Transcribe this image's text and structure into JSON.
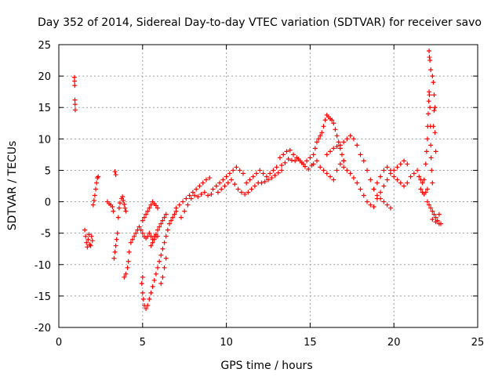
{
  "chart_data": {
    "type": "scatter",
    "title": "Day 352 of 2014, Sidereal Day-to-day VTEC variation (SDTVAR) for receiver savo",
    "xlabel": "GPS time / hours",
    "ylabel": "SDTVAR / TECUs",
    "xlim": [
      0,
      25
    ],
    "ylim": [
      -20,
      25
    ],
    "xticks": [
      0,
      5,
      10,
      15,
      20,
      25
    ],
    "yticks": [
      -20,
      -15,
      -10,
      -5,
      0,
      5,
      10,
      15,
      20,
      25
    ],
    "grid": true,
    "legend": "none",
    "marker": "plus",
    "color": "#ff0000",
    "series": [
      {
        "name": "SDTVAR",
        "points": [
          [
            0.93,
            19.8
          ],
          [
            0.94,
            19.2
          ],
          [
            0.95,
            18.5
          ],
          [
            0.96,
            16.2
          ],
          [
            0.97,
            15.5
          ],
          [
            0.98,
            14.6
          ],
          [
            1.55,
            -4.5
          ],
          [
            1.6,
            -5.5
          ],
          [
            1.65,
            -6.5
          ],
          [
            1.7,
            -7.2
          ],
          [
            1.75,
            -6.0
          ],
          [
            1.8,
            -5.2
          ],
          [
            1.85,
            -6.8
          ],
          [
            1.9,
            -7.0
          ],
          [
            1.95,
            -5.5
          ],
          [
            2.0,
            -6.2
          ],
          [
            2.05,
            -0.5
          ],
          [
            2.1,
            0.2
          ],
          [
            2.15,
            1.0
          ],
          [
            2.2,
            2.0
          ],
          [
            2.25,
            3.0
          ],
          [
            2.3,
            3.8
          ],
          [
            2.35,
            4.0
          ],
          [
            2.9,
            0.0
          ],
          [
            3.0,
            -0.3
          ],
          [
            3.1,
            -0.5
          ],
          [
            3.2,
            -0.8
          ],
          [
            3.25,
            -1.5
          ],
          [
            3.35,
            4.8
          ],
          [
            3.4,
            4.3
          ],
          [
            3.3,
            -9.0
          ],
          [
            3.35,
            -8.0
          ],
          [
            3.4,
            -7.0
          ],
          [
            3.45,
            -6.0
          ],
          [
            3.5,
            -5.0
          ],
          [
            3.55,
            -2.5
          ],
          [
            3.6,
            -1.0
          ],
          [
            3.65,
            -0.2
          ],
          [
            3.75,
            0.5
          ],
          [
            3.8,
            0.8
          ],
          [
            3.85,
            0.2
          ],
          [
            3.9,
            -0.4
          ],
          [
            3.95,
            -1.0
          ],
          [
            4.0,
            -1.5
          ],
          [
            3.9,
            -12.0
          ],
          [
            4.0,
            -11.5
          ],
          [
            4.1,
            -10.5
          ],
          [
            4.15,
            -9.5
          ],
          [
            4.2,
            -8.0
          ],
          [
            4.3,
            -6.5
          ],
          [
            4.4,
            -6.0
          ],
          [
            4.5,
            -5.5
          ],
          [
            4.6,
            -5.0
          ],
          [
            4.7,
            -4.5
          ],
          [
            4.8,
            -4.0
          ],
          [
            4.9,
            -4.5
          ],
          [
            5.0,
            -5.0
          ],
          [
            5.1,
            -5.5
          ],
          [
            5.2,
            -5.8
          ],
          [
            5.3,
            -5.5
          ],
          [
            5.4,
            -5.0
          ],
          [
            5.5,
            -5.5
          ],
          [
            5.6,
            -6.0
          ],
          [
            5.7,
            -5.5
          ],
          [
            5.8,
            -5.2
          ],
          [
            5.9,
            -5.5
          ],
          [
            5.0,
            -12.0
          ],
          [
            4.95,
            -13.0
          ],
          [
            5.0,
            -14.5
          ],
          [
            5.05,
            -15.5
          ],
          [
            5.1,
            -16.5
          ],
          [
            5.2,
            -17.0
          ],
          [
            5.3,
            -16.5
          ],
          [
            5.4,
            -15.5
          ],
          [
            5.5,
            -14.5
          ],
          [
            5.6,
            -13.5
          ],
          [
            5.7,
            -12.5
          ],
          [
            5.8,
            -11.5
          ],
          [
            5.9,
            -10.5
          ],
          [
            6.0,
            -9.5
          ],
          [
            6.1,
            -8.5
          ],
          [
            6.2,
            -7.5
          ],
          [
            6.3,
            -6.5
          ],
          [
            6.4,
            -5.5
          ],
          [
            6.5,
            -4.5
          ],
          [
            6.6,
            -3.5
          ],
          [
            6.7,
            -3.0
          ],
          [
            6.8,
            -2.5
          ],
          [
            6.9,
            -2.0
          ],
          [
            7.0,
            -1.5
          ],
          [
            5.0,
            -3.0
          ],
          [
            5.1,
            -2.5
          ],
          [
            5.2,
            -2.0
          ],
          [
            5.3,
            -1.5
          ],
          [
            5.4,
            -1.0
          ],
          [
            5.5,
            -0.5
          ],
          [
            5.6,
            0.0
          ],
          [
            5.7,
            -0.3
          ],
          [
            5.8,
            -0.6
          ],
          [
            5.9,
            -1.0
          ],
          [
            5.5,
            -7.0
          ],
          [
            5.6,
            -6.5
          ],
          [
            5.7,
            -6.0
          ],
          [
            5.8,
            -5.5
          ],
          [
            5.9,
            -4.5
          ],
          [
            6.0,
            -4.0
          ],
          [
            6.1,
            -3.5
          ],
          [
            6.2,
            -3.0
          ],
          [
            6.3,
            -2.5
          ],
          [
            6.4,
            -2.0
          ],
          [
            6.1,
            -13.0
          ],
          [
            6.2,
            -12.0
          ],
          [
            6.3,
            -10.5
          ],
          [
            6.4,
            -9.0
          ],
          [
            7.0,
            -1.0
          ],
          [
            7.2,
            -0.5
          ],
          [
            7.4,
            0.0
          ],
          [
            7.6,
            0.5
          ],
          [
            7.8,
            1.0
          ],
          [
            8.0,
            1.5
          ],
          [
            8.2,
            2.0
          ],
          [
            8.4,
            2.5
          ],
          [
            8.6,
            3.0
          ],
          [
            8.8,
            3.5
          ],
          [
            9.0,
            3.8
          ],
          [
            7.3,
            -2.5
          ],
          [
            7.5,
            -1.5
          ],
          [
            7.7,
            -0.5
          ],
          [
            7.9,
            0.5
          ],
          [
            8.1,
            1.0
          ],
          [
            8.3,
            0.8
          ],
          [
            8.5,
            1.2
          ],
          [
            8.7,
            1.5
          ],
          [
            8.9,
            1.0
          ],
          [
            9.1,
            1.2
          ],
          [
            9.2,
            2.0
          ],
          [
            9.4,
            2.5
          ],
          [
            9.6,
            3.0
          ],
          [
            9.8,
            3.5
          ],
          [
            10.0,
            4.0
          ],
          [
            10.2,
            4.5
          ],
          [
            10.4,
            5.0
          ],
          [
            10.6,
            5.5
          ],
          [
            10.8,
            5.0
          ],
          [
            11.0,
            4.5
          ],
          [
            9.5,
            1.5
          ],
          [
            9.7,
            2.0
          ],
          [
            9.9,
            2.5
          ],
          [
            10.1,
            3.0
          ],
          [
            10.3,
            3.5
          ],
          [
            10.5,
            2.8
          ],
          [
            10.7,
            2.0
          ],
          [
            10.9,
            1.5
          ],
          [
            11.1,
            1.2
          ],
          [
            11.3,
            1.5
          ],
          [
            11.2,
            3.0
          ],
          [
            11.4,
            3.5
          ],
          [
            11.6,
            4.0
          ],
          [
            11.8,
            4.5
          ],
          [
            12.0,
            5.0
          ],
          [
            12.2,
            4.5
          ],
          [
            12.4,
            4.0
          ],
          [
            12.6,
            4.5
          ],
          [
            12.8,
            5.0
          ],
          [
            13.0,
            5.5
          ],
          [
            11.5,
            2.0
          ],
          [
            11.7,
            2.5
          ],
          [
            11.9,
            3.0
          ],
          [
            12.1,
            3.0
          ],
          [
            12.3,
            3.2
          ],
          [
            12.5,
            3.5
          ],
          [
            12.7,
            3.8
          ],
          [
            12.9,
            4.2
          ],
          [
            13.1,
            4.6
          ],
          [
            13.3,
            5.0
          ],
          [
            13.2,
            7.0
          ],
          [
            13.4,
            7.5
          ],
          [
            13.6,
            8.0
          ],
          [
            13.8,
            8.2
          ],
          [
            14.0,
            7.5
          ],
          [
            14.2,
            7.0
          ],
          [
            14.4,
            6.5
          ],
          [
            14.6,
            6.0
          ],
          [
            14.8,
            6.5
          ],
          [
            15.0,
            7.0
          ],
          [
            13.3,
            5.8
          ],
          [
            13.5,
            6.2
          ],
          [
            13.7,
            6.8
          ],
          [
            13.9,
            6.6
          ],
          [
            14.1,
            6.5
          ],
          [
            14.3,
            6.8
          ],
          [
            14.5,
            6.2
          ],
          [
            14.7,
            5.6
          ],
          [
            14.9,
            5.2
          ],
          [
            15.1,
            5.8
          ],
          [
            15.2,
            7.5
          ],
          [
            15.3,
            8.5
          ],
          [
            15.4,
            9.5
          ],
          [
            15.5,
            10.0
          ],
          [
            15.6,
            10.5
          ],
          [
            15.7,
            11.0
          ],
          [
            15.8,
            12.0
          ],
          [
            15.9,
            13.0
          ],
          [
            16.0,
            13.8
          ],
          [
            16.1,
            13.5
          ],
          [
            16.2,
            13.2
          ],
          [
            16.3,
            13.0
          ],
          [
            16.4,
            12.5
          ],
          [
            16.5,
            11.5
          ],
          [
            16.6,
            10.5
          ],
          [
            16.7,
            9.5
          ],
          [
            16.8,
            8.5
          ],
          [
            16.9,
            7.5
          ],
          [
            17.0,
            6.5
          ],
          [
            15.2,
            6.0
          ],
          [
            15.4,
            6.5
          ],
          [
            15.6,
            5.5
          ],
          [
            15.8,
            5.0
          ],
          [
            16.0,
            4.5
          ],
          [
            16.2,
            4.0
          ],
          [
            16.4,
            3.5
          ],
          [
            16.6,
            5.0
          ],
          [
            16.8,
            6.0
          ],
          [
            17.0,
            6.5
          ],
          [
            16.0,
            7.5
          ],
          [
            16.2,
            8.0
          ],
          [
            16.4,
            8.5
          ],
          [
            16.6,
            8.8
          ],
          [
            16.8,
            9.0
          ],
          [
            17.0,
            9.5
          ],
          [
            17.2,
            10.0
          ],
          [
            17.4,
            10.5
          ],
          [
            17.6,
            10.0
          ],
          [
            17.8,
            9.0
          ],
          [
            17.0,
            5.5
          ],
          [
            17.2,
            5.0
          ],
          [
            17.4,
            4.5
          ],
          [
            17.6,
            3.8
          ],
          [
            17.8,
            3.0
          ],
          [
            18.0,
            2.0
          ],
          [
            18.2,
            1.0
          ],
          [
            18.4,
            0.0
          ],
          [
            18.6,
            -0.5
          ],
          [
            18.8,
            -0.8
          ],
          [
            18.0,
            7.5
          ],
          [
            18.2,
            6.5
          ],
          [
            18.4,
            5.0
          ],
          [
            18.6,
            3.5
          ],
          [
            18.8,
            2.0
          ],
          [
            19.0,
            1.0
          ],
          [
            19.2,
            0.5
          ],
          [
            19.4,
            0.0
          ],
          [
            19.6,
            -0.5
          ],
          [
            19.8,
            -1.0
          ],
          [
            19.0,
            0.5
          ],
          [
            19.2,
            1.5
          ],
          [
            19.4,
            2.5
          ],
          [
            19.6,
            3.5
          ],
          [
            19.8,
            4.5
          ],
          [
            20.0,
            5.0
          ],
          [
            20.2,
            5.5
          ],
          [
            20.4,
            6.0
          ],
          [
            20.6,
            6.5
          ],
          [
            20.8,
            6.0
          ],
          [
            18.8,
            2.0
          ],
          [
            19.0,
            3.0
          ],
          [
            19.2,
            4.0
          ],
          [
            19.4,
            5.0
          ],
          [
            19.6,
            5.5
          ],
          [
            19.8,
            5.0
          ],
          [
            20.0,
            4.0
          ],
          [
            20.2,
            3.5
          ],
          [
            20.4,
            3.0
          ],
          [
            20.6,
            2.5
          ],
          [
            20.8,
            3.0
          ],
          [
            21.0,
            4.0
          ],
          [
            21.2,
            4.5
          ],
          [
            21.4,
            5.0
          ],
          [
            21.5,
            4.0
          ],
          [
            21.6,
            3.5
          ],
          [
            21.7,
            3.0
          ],
          [
            21.8,
            3.5
          ],
          [
            21.6,
            2.0
          ],
          [
            21.7,
            1.5
          ],
          [
            21.8,
            1.2
          ],
          [
            21.9,
            1.5
          ],
          [
            22.0,
            2.0
          ],
          [
            21.9,
            6.0
          ],
          [
            21.95,
            8.0
          ],
          [
            22.0,
            10.0
          ],
          [
            22.02,
            12.0
          ],
          [
            22.05,
            14.0
          ],
          [
            22.08,
            16.0
          ],
          [
            22.1,
            17.5
          ],
          [
            22.12,
            17.0
          ],
          [
            22.15,
            15.0
          ],
          [
            22.18,
            12.0
          ],
          [
            22.2,
            9.0
          ],
          [
            22.22,
            7.0
          ],
          [
            22.25,
            5.0
          ],
          [
            22.3,
            3.0
          ],
          [
            22.35,
            12.0
          ],
          [
            22.4,
            14.5
          ],
          [
            22.45,
            11.0
          ],
          [
            22.5,
            8.0
          ],
          [
            22.1,
            24.0
          ],
          [
            22.12,
            23.0
          ],
          [
            22.15,
            22.5
          ],
          [
            22.2,
            21.0
          ],
          [
            22.3,
            20.0
          ],
          [
            22.35,
            19.0
          ],
          [
            22.4,
            17.0
          ],
          [
            22.45,
            15.0
          ],
          [
            22.0,
            0.0
          ],
          [
            22.1,
            -0.5
          ],
          [
            22.2,
            -1.0
          ],
          [
            22.3,
            -1.5
          ],
          [
            22.4,
            -2.0
          ],
          [
            22.5,
            -2.5
          ],
          [
            22.6,
            -3.0
          ],
          [
            22.7,
            -3.5
          ],
          [
            22.8,
            -3.5
          ],
          [
            22.3,
            -2.8
          ],
          [
            22.5,
            -3.2
          ],
          [
            22.7,
            -2.0
          ]
        ]
      }
    ]
  }
}
